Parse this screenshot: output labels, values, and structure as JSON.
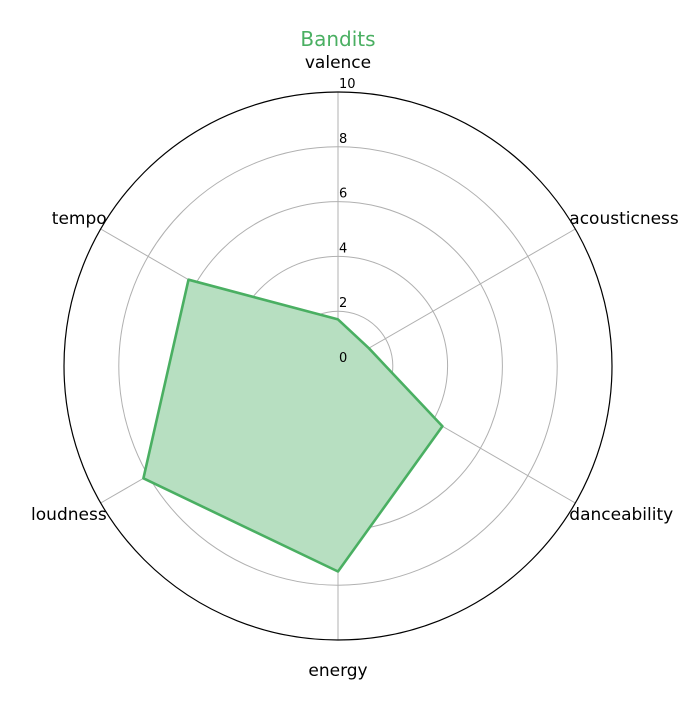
{
  "chart_data": {
    "type": "radar",
    "title": "Bandits",
    "axes": [
      "valence",
      "acousticness",
      "danceability",
      "energy",
      "loudness",
      "tempo"
    ],
    "radial_ticks": [
      "0",
      "2",
      "4",
      "6",
      "8",
      "10"
    ],
    "rlim": [
      0,
      10
    ],
    "grid": true,
    "series": [
      {
        "values": [
          1.7,
          1.3,
          4.4,
          7.5,
          8.2,
          6.3
        ]
      }
    ]
  },
  "colors": {
    "series_line": "#4aaf62",
    "series_fill": "#b7dfc1",
    "title": "#4aaf62"
  }
}
